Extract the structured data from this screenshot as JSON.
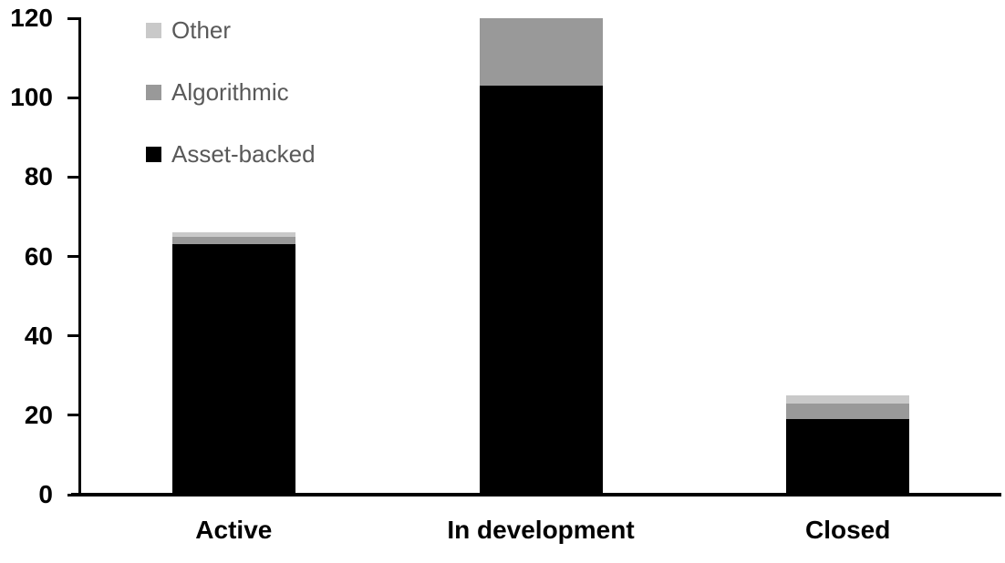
{
  "chart_data": {
    "type": "bar",
    "stacked": true,
    "title": "",
    "xlabel": "",
    "ylabel": "",
    "categories": [
      "Active",
      "In development",
      "Closed"
    ],
    "series": [
      {
        "name": "Asset-backed",
        "color": "#000000",
        "values": [
          63,
          103,
          19
        ]
      },
      {
        "name": "Algorithmic",
        "color": "#999999",
        "values": [
          2,
          17,
          4
        ]
      },
      {
        "name": "Other",
        "color": "#c9c9c9",
        "values": [
          1,
          0,
          2
        ]
      }
    ],
    "totals": [
      66,
      120,
      25
    ],
    "ylim": [
      0,
      120
    ],
    "yticks": [
      0,
      20,
      40,
      60,
      80,
      100,
      120
    ],
    "grid": false,
    "legend_position": "top-left",
    "legend_order_top_to_bottom": [
      "Other",
      "Algorithmic",
      "Asset-backed"
    ],
    "colors": {
      "axis": "#000000",
      "tick_label": "#000000",
      "category_label": "#000000",
      "legend_text": "#595959",
      "background": "#ffffff"
    }
  }
}
